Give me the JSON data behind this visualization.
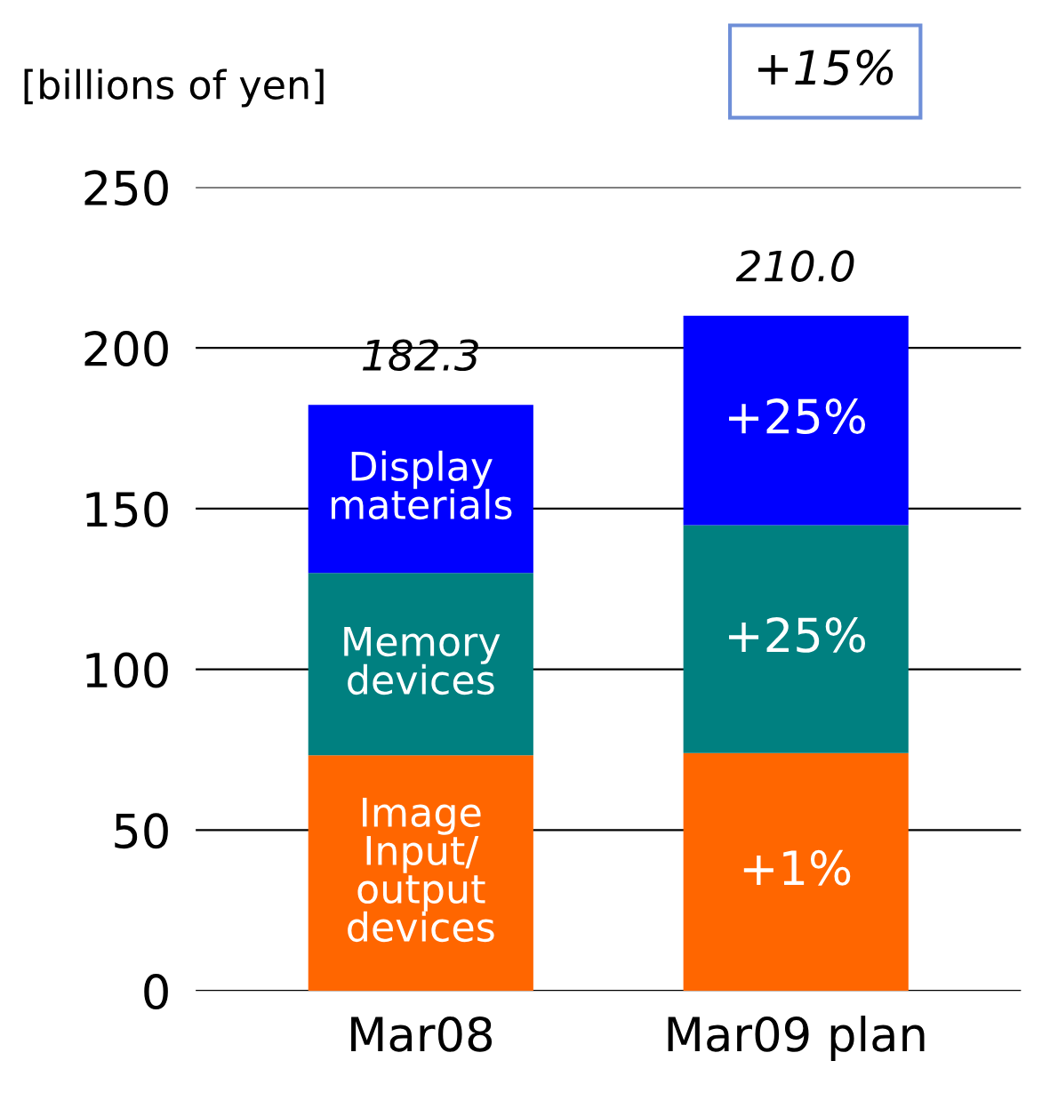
{
  "chart_data": {
    "type": "bar",
    "stacked": true,
    "ylabel": "[billions of yen]",
    "categories": [
      "Mar08",
      "Mar09 plan"
    ],
    "series": [
      {
        "name": "Image\nInput/\noutput\ndevices",
        "color": "#ff6600",
        "values": [
          73.3,
          74.0
        ]
      },
      {
        "name": "Memory\ndevices",
        "color": "#008080",
        "values": [
          56.7,
          70.9
        ]
      },
      {
        "name": "Display\nmaterials",
        "color": "#0000ff",
        "values": [
          52.3,
          65.1
        ]
      }
    ],
    "totals": [
      "182.3",
      "210.0"
    ],
    "annotations": [
      "+15%",
      "+1%",
      "+25%",
      "+25%"
    ],
    "ylim": [
      0,
      250
    ],
    "yticks": [
      0,
      50,
      100,
      150,
      200,
      250
    ],
    "grid": "y",
    "legend": false
  }
}
